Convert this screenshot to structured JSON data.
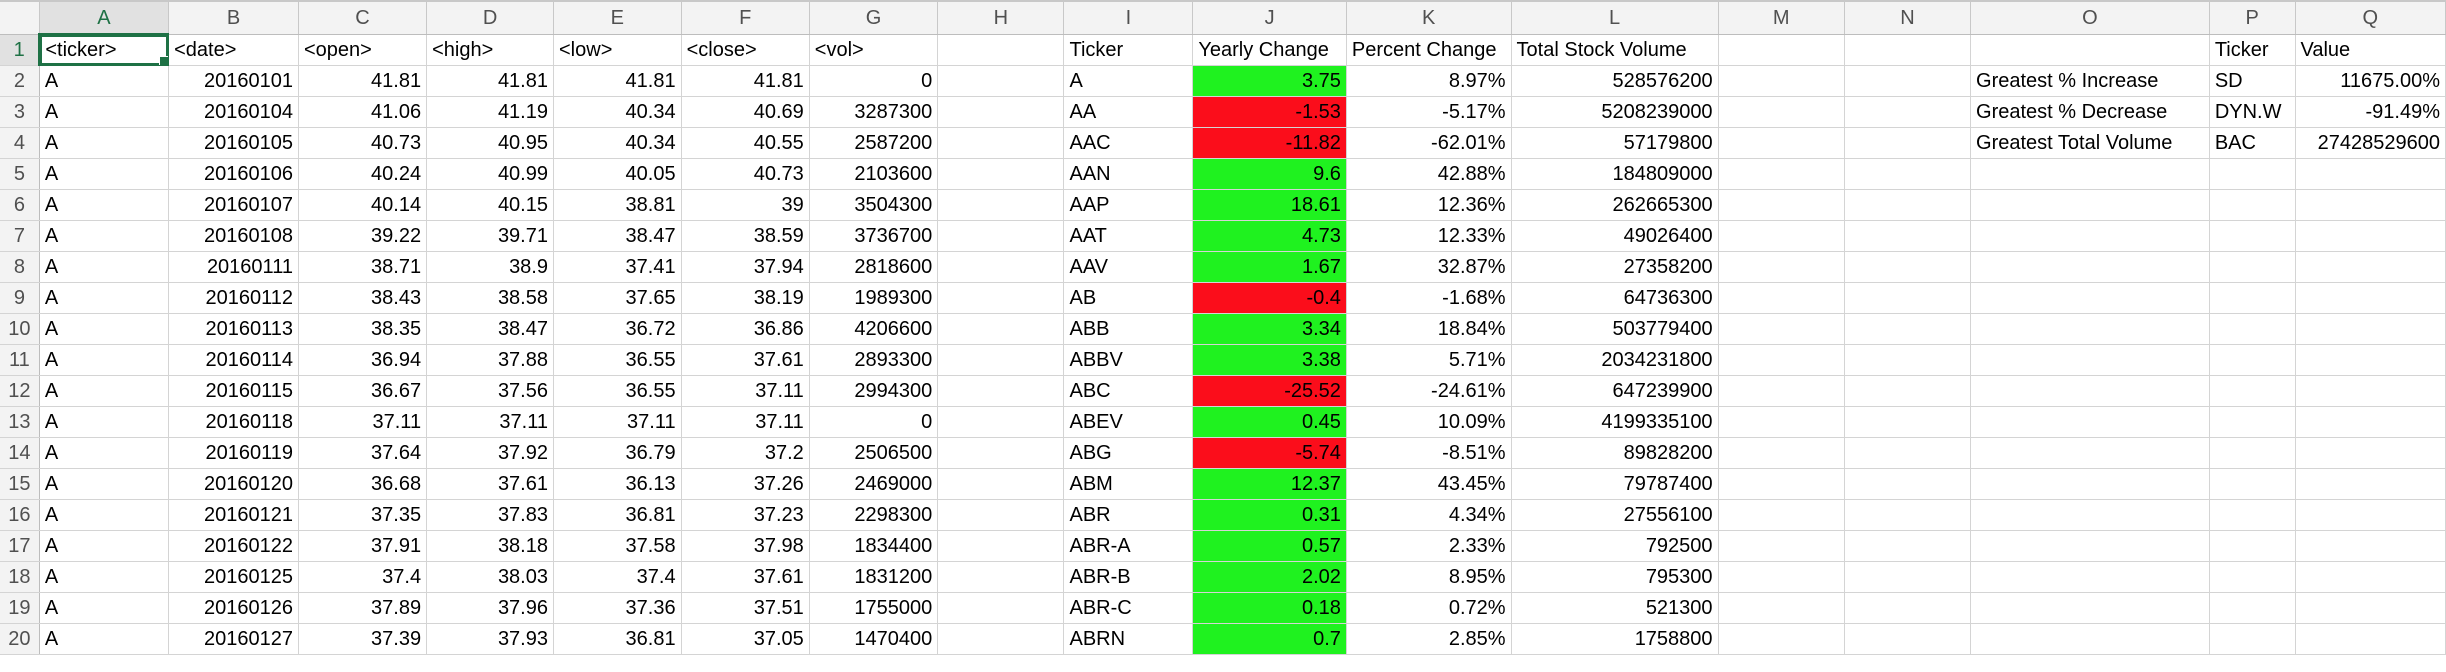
{
  "columns": [
    "A",
    "B",
    "C",
    "D",
    "E",
    "F",
    "G",
    "H",
    "I",
    "J",
    "K",
    "L",
    "M",
    "N",
    "O",
    "P",
    "Q"
  ],
  "row_numbers": [
    1,
    2,
    3,
    4,
    5,
    6,
    7,
    8,
    9,
    10,
    11,
    12,
    13,
    14,
    15,
    16,
    17,
    18,
    19,
    20
  ],
  "colors": {
    "positive_fill": "#1ff21f",
    "negative_fill": "#fb0d1b",
    "selection": "#1e7145"
  },
  "headers": {
    "raw": [
      "<ticker>",
      "<date>",
      "<open>",
      "<high>",
      "<low>",
      "<close>",
      "<vol>"
    ],
    "summary": [
      "Ticker",
      "Yearly Change",
      "Percent Change",
      "Total Stock Volume"
    ],
    "greatest": [
      "Ticker",
      "Value"
    ]
  },
  "raw_rows": [
    [
      "A",
      "20160101",
      "41.81",
      "41.81",
      "41.81",
      "41.81",
      "0"
    ],
    [
      "A",
      "20160104",
      "41.06",
      "41.19",
      "40.34",
      "40.69",
      "3287300"
    ],
    [
      "A",
      "20160105",
      "40.73",
      "40.95",
      "40.34",
      "40.55",
      "2587200"
    ],
    [
      "A",
      "20160106",
      "40.24",
      "40.99",
      "40.05",
      "40.73",
      "2103600"
    ],
    [
      "A",
      "20160107",
      "40.14",
      "40.15",
      "38.81",
      "39",
      "3504300"
    ],
    [
      "A",
      "20160108",
      "39.22",
      "39.71",
      "38.47",
      "38.59",
      "3736700"
    ],
    [
      "A",
      "20160111",
      "38.71",
      "38.9",
      "37.41",
      "37.94",
      "2818600"
    ],
    [
      "A",
      "20160112",
      "38.43",
      "38.58",
      "37.65",
      "38.19",
      "1989300"
    ],
    [
      "A",
      "20160113",
      "38.35",
      "38.47",
      "36.72",
      "36.86",
      "4206600"
    ],
    [
      "A",
      "20160114",
      "36.94",
      "37.88",
      "36.55",
      "37.61",
      "2893300"
    ],
    [
      "A",
      "20160115",
      "36.67",
      "37.56",
      "36.55",
      "37.11",
      "2994300"
    ],
    [
      "A",
      "20160118",
      "37.11",
      "37.11",
      "37.11",
      "37.11",
      "0"
    ],
    [
      "A",
      "20160119",
      "37.64",
      "37.92",
      "36.79",
      "37.2",
      "2506500"
    ],
    [
      "A",
      "20160120",
      "36.68",
      "37.61",
      "36.13",
      "37.26",
      "2469000"
    ],
    [
      "A",
      "20160121",
      "37.35",
      "37.83",
      "36.81",
      "37.23",
      "2298300"
    ],
    [
      "A",
      "20160122",
      "37.91",
      "38.18",
      "37.58",
      "37.98",
      "1834400"
    ],
    [
      "A",
      "20160125",
      "37.4",
      "38.03",
      "37.4",
      "37.61",
      "1831200"
    ],
    [
      "A",
      "20160126",
      "37.89",
      "37.96",
      "37.36",
      "37.51",
      "1755000"
    ],
    [
      "A",
      "20160127",
      "37.39",
      "37.93",
      "36.81",
      "37.05",
      "1470400"
    ]
  ],
  "summary_rows": [
    {
      "ticker": "A",
      "change": "3.75",
      "pct": "8.97%",
      "volume": "528576200",
      "positive": true
    },
    {
      "ticker": "AA",
      "change": "-1.53",
      "pct": "-5.17%",
      "volume": "5208239000",
      "positive": false
    },
    {
      "ticker": "AAC",
      "change": "-11.82",
      "pct": "-62.01%",
      "volume": "57179800",
      "positive": false
    },
    {
      "ticker": "AAN",
      "change": "9.6",
      "pct": "42.88%",
      "volume": "184809000",
      "positive": true
    },
    {
      "ticker": "AAP",
      "change": "18.61",
      "pct": "12.36%",
      "volume": "262665300",
      "positive": true
    },
    {
      "ticker": "AAT",
      "change": "4.73",
      "pct": "12.33%",
      "volume": "49026400",
      "positive": true
    },
    {
      "ticker": "AAV",
      "change": "1.67",
      "pct": "32.87%",
      "volume": "27358200",
      "positive": true
    },
    {
      "ticker": "AB",
      "change": "-0.4",
      "pct": "-1.68%",
      "volume": "64736300",
      "positive": false
    },
    {
      "ticker": "ABB",
      "change": "3.34",
      "pct": "18.84%",
      "volume": "503779400",
      "positive": true
    },
    {
      "ticker": "ABBV",
      "change": "3.38",
      "pct": "5.71%",
      "volume": "2034231800",
      "positive": true
    },
    {
      "ticker": "ABC",
      "change": "-25.52",
      "pct": "-24.61%",
      "volume": "647239900",
      "positive": false
    },
    {
      "ticker": "ABEV",
      "change": "0.45",
      "pct": "10.09%",
      "volume": "4199335100",
      "positive": true
    },
    {
      "ticker": "ABG",
      "change": "-5.74",
      "pct": "-8.51%",
      "volume": "89828200",
      "positive": false
    },
    {
      "ticker": "ABM",
      "change": "12.37",
      "pct": "43.45%",
      "volume": "79787400",
      "positive": true
    },
    {
      "ticker": "ABR",
      "change": "0.31",
      "pct": "4.34%",
      "volume": "27556100",
      "positive": true
    },
    {
      "ticker": "ABR-A",
      "change": "0.57",
      "pct": "2.33%",
      "volume": "792500",
      "positive": true
    },
    {
      "ticker": "ABR-B",
      "change": "2.02",
      "pct": "8.95%",
      "volume": "795300",
      "positive": true
    },
    {
      "ticker": "ABR-C",
      "change": "0.18",
      "pct": "0.72%",
      "volume": "521300",
      "positive": true
    },
    {
      "ticker": "ABRN",
      "change": "0.7",
      "pct": "2.85%",
      "volume": "1758800",
      "positive": true
    }
  ],
  "greatest_rows": [
    {
      "label": "Greatest % Increase",
      "ticker": "SD",
      "value": "11675.00%"
    },
    {
      "label": "Greatest % Decrease",
      "ticker": "DYN.W",
      "value": "-91.49%"
    },
    {
      "label": "Greatest Total Volume",
      "ticker": "BAC",
      "value": "27428529600"
    }
  ]
}
